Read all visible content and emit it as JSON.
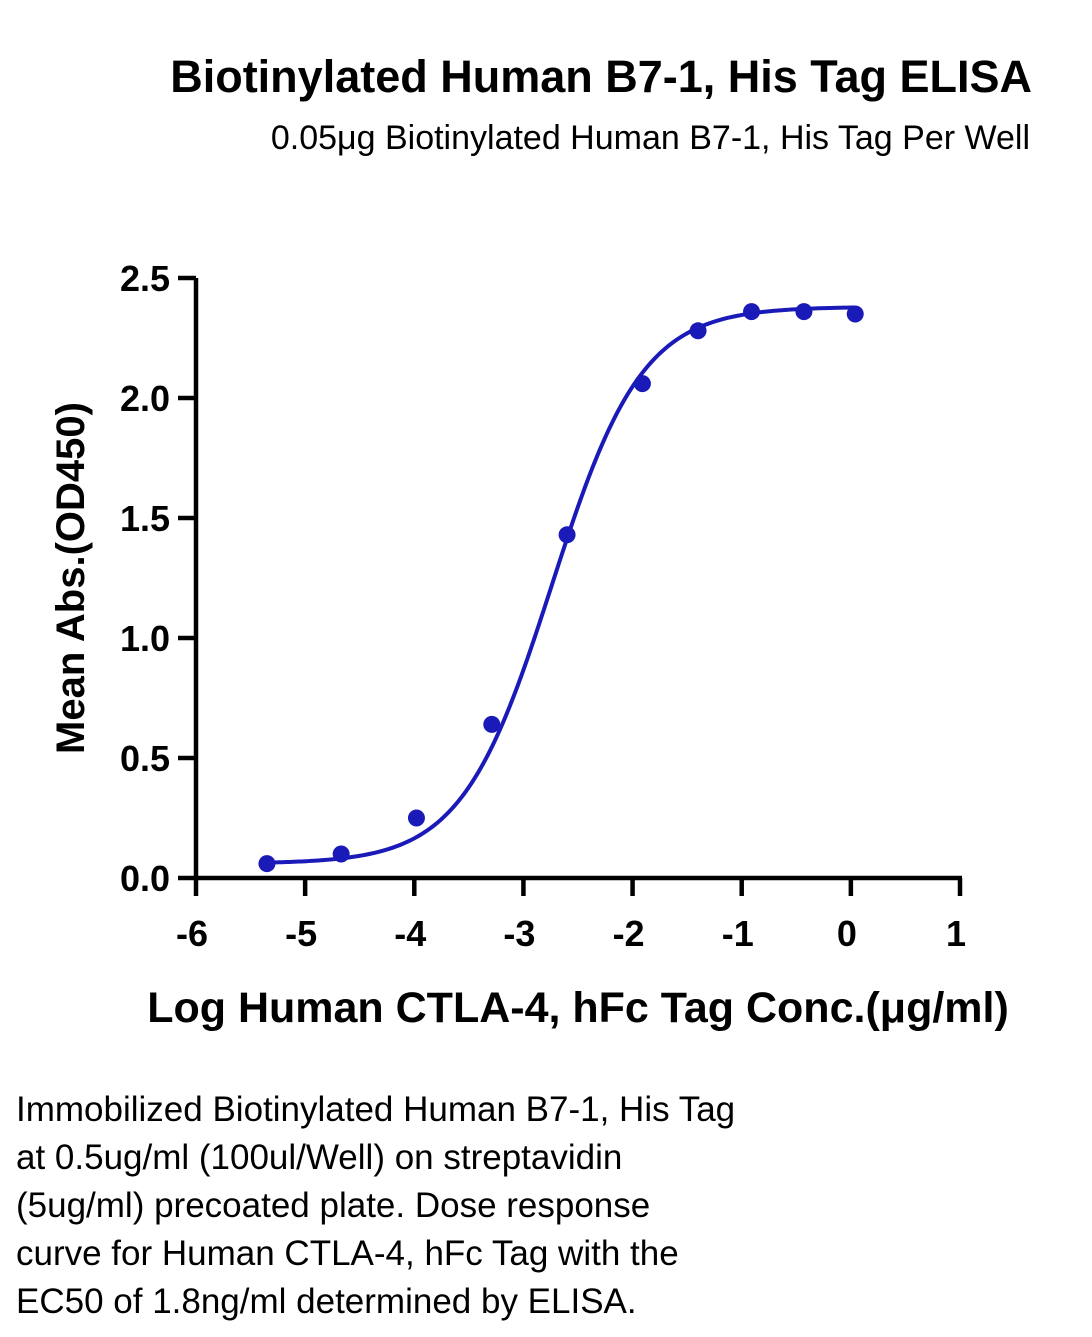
{
  "chart_data": {
    "type": "scatter",
    "title": "Biotinylated Human B7-1, His Tag ELISA",
    "subtitle": "0.05μg Biotinylated Human B7-1, His Tag Per Well",
    "xlabel": "Log Human CTLA-4, hFc Tag Conc.(μg/ml)",
    "ylabel": "Mean Abs.(OD450)",
    "xlim": [
      -6,
      1
    ],
    "ylim": [
      0,
      2.5
    ],
    "x_ticks": [
      "-6",
      "-5",
      "-4",
      "-3",
      "-2",
      "-1",
      "0",
      "1"
    ],
    "y_ticks": [
      "0.0",
      "0.5",
      "1.0",
      "1.5",
      "2.0",
      "2.5"
    ],
    "x_tick_values": [
      -6,
      -5,
      -4,
      -3,
      -2,
      -1,
      0,
      1
    ],
    "y_tick_values": [
      0,
      0.5,
      1.0,
      1.5,
      2.0,
      2.5
    ],
    "grid": false,
    "legend": "none",
    "series": [
      {
        "points": [
          {
            "x": -5.35,
            "y": 0.06
          },
          {
            "x": -4.67,
            "y": 0.1
          },
          {
            "x": -3.98,
            "y": 0.25
          },
          {
            "x": -3.29,
            "y": 0.64
          },
          {
            "x": -2.6,
            "y": 1.43
          },
          {
            "x": -1.91,
            "y": 2.06
          },
          {
            "x": -1.4,
            "y": 2.28
          },
          {
            "x": -0.91,
            "y": 2.36
          },
          {
            "x": -0.43,
            "y": 2.36
          },
          {
            "x": 0.04,
            "y": 2.35
          }
        ],
        "fit": {
          "model": "4PL",
          "bottom": 0.06,
          "top": 2.38,
          "log_ec50": -2.74,
          "hill": 1.05
        }
      }
    ],
    "colors": {
      "series": "#1a1ab8",
      "axis": "#000000"
    }
  },
  "caption": "Immobilized Biotinylated Human B7-1, His Tag\nat 0.5ug/ml (100ul/Well) on streptavidin\n(5ug/ml) precoated plate. Dose response\ncurve for Human CTLA-4, hFc Tag with the\nEC50 of 1.8ng/ml determined by ELISA."
}
